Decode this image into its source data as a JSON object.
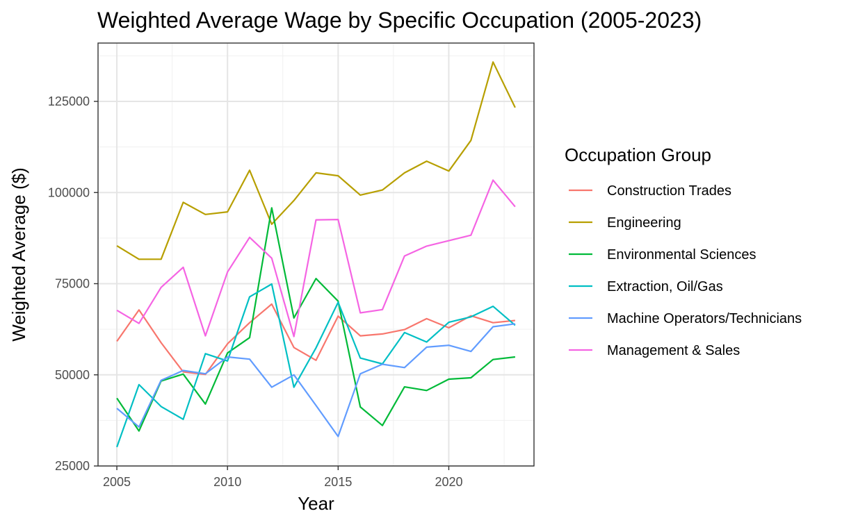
{
  "chart_data": {
    "type": "line",
    "title": "Weighted Average Wage by Specific Occupation (2005-2023)",
    "xlabel": "Year",
    "ylabel": "Weighted Average ($)",
    "x": [
      2005,
      2006,
      2007,
      2008,
      2009,
      2010,
      2011,
      2012,
      2013,
      2014,
      2015,
      2016,
      2017,
      2018,
      2019,
      2020,
      2021,
      2022,
      2023
    ],
    "xlim": [
      2004.15,
      2023.85
    ],
    "ylim": [
      25000,
      141000
    ],
    "x_ticks": [
      2005,
      2010,
      2015,
      2020
    ],
    "y_ticks": [
      25000,
      50000,
      75000,
      100000,
      125000
    ],
    "grid": true,
    "legend": {
      "title": "Occupation Group",
      "placement": "right"
    },
    "series": [
      {
        "name": "Construction Trades",
        "color": "#F8766D",
        "values": [
          59200,
          67800,
          58800,
          50800,
          50100,
          58500,
          64300,
          69400,
          57500,
          54000,
          66100,
          60700,
          61200,
          62400,
          65400,
          62900,
          66200,
          64300,
          64900
        ]
      },
      {
        "name": "Engineering",
        "color": "#B79F00",
        "values": [
          85400,
          81700,
          81700,
          97300,
          94000,
          94700,
          106100,
          91300,
          97800,
          105400,
          104600,
          99300,
          100700,
          105400,
          108600,
          105900,
          114300,
          135800,
          123300
        ]
      },
      {
        "name": "Environmental Sciences",
        "color": "#00BA38",
        "values": [
          43600,
          34600,
          48300,
          50200,
          42000,
          56000,
          60200,
          95800,
          65600,
          76400,
          70200,
          41200,
          36100,
          46700,
          45700,
          48800,
          49200,
          54200,
          54900
        ]
      },
      {
        "name": "Extraction, Oil/Gas",
        "color": "#00BFC4",
        "values": [
          30200,
          47300,
          41300,
          37800,
          55800,
          53800,
          71400,
          74900,
          46600,
          57400,
          69900,
          54600,
          53000,
          61600,
          59000,
          64400,
          65900,
          68800,
          63600
        ]
      },
      {
        "name": "Machine Operators/Technicians",
        "color": "#619CFF",
        "values": [
          40800,
          35700,
          48500,
          51200,
          50300,
          54900,
          54300,
          46600,
          50000,
          41600,
          33100,
          50300,
          52900,
          52000,
          57600,
          58100,
          56400,
          63200,
          64000
        ]
      },
      {
        "name": "Management & Sales",
        "color": "#F564E3",
        "values": [
          67700,
          64100,
          74000,
          79500,
          60700,
          78200,
          87700,
          82000,
          60500,
          92500,
          92600,
          67000,
          67900,
          82600,
          85300,
          86800,
          88300,
          103400,
          96100
        ]
      }
    ]
  }
}
